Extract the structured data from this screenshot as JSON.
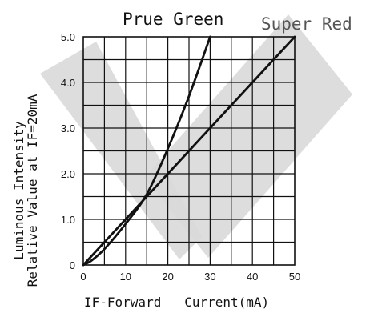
{
  "chart_data": {
    "type": "line",
    "xlabel": "IF-Forward   Current(mA)",
    "ylabel_line1": "Luminous Intensity",
    "ylabel_line2": "Relative Value at IF=20mA",
    "xlim": [
      0,
      50
    ],
    "ylim": [
      0,
      5.0
    ],
    "x_ticks": [
      0,
      10,
      20,
      30,
      40,
      50
    ],
    "y_ticks": [
      "0",
      "1.0",
      "2.0",
      "3.0",
      "4.0",
      "5.0"
    ],
    "grid": true,
    "series": [
      {
        "name": "Prue Green",
        "x": [
          0,
          2,
          5,
          10,
          15,
          20,
          25,
          30
        ],
        "y": [
          0,
          0.1,
          0.35,
          0.9,
          1.55,
          2.55,
          3.7,
          5.0
        ]
      },
      {
        "name": "Super Red",
        "x": [
          0,
          10,
          20,
          30,
          40,
          50
        ],
        "y": [
          0,
          1.0,
          2.0,
          3.0,
          4.0,
          5.0
        ]
      }
    ]
  }
}
